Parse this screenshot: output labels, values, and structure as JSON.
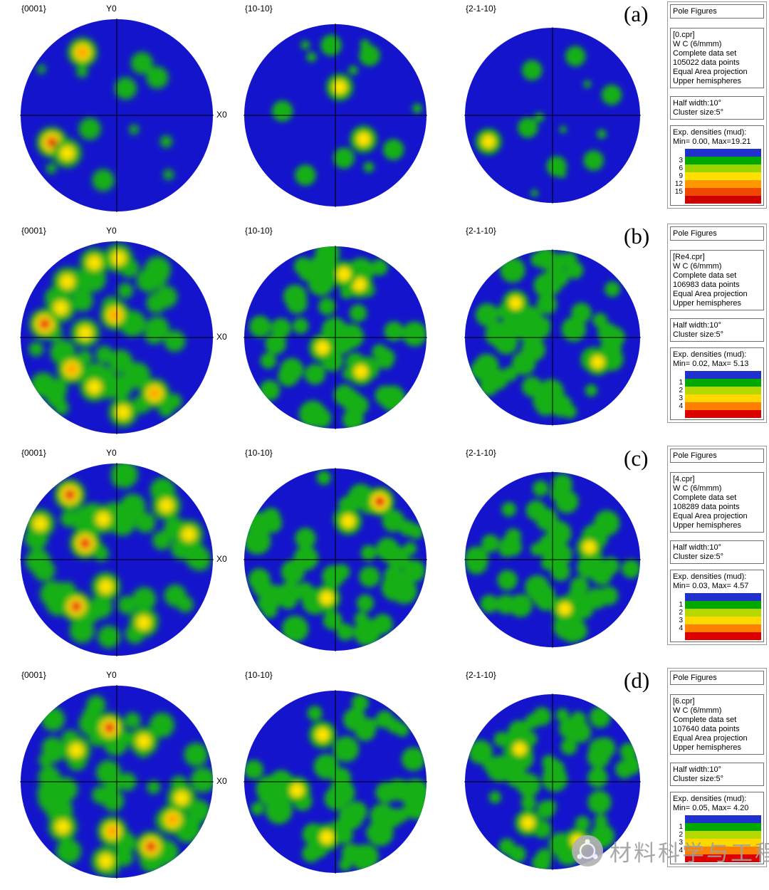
{
  "legend_header": "Pole Figures",
  "palette": {
    "base": "#1414cc",
    "green": "#12b012",
    "yellow": "#ffe400",
    "orange": "#ff9000",
    "red": "#e61010"
  },
  "watermark": {
    "text": "材料科学与工程"
  },
  "chart_data": {
    "type": "heatmap",
    "subtype": "EBSD pole figures",
    "phase": "W C (6/mmm)",
    "projection": "Equal Area projection",
    "hemisphere": "Upper hemispheres",
    "pole_figures": [
      "{0001}",
      "{10-10}",
      "{2-1-10}"
    ],
    "rows": [
      {
        "label": "(a)",
        "file": "0.cpr",
        "data_points": 105022,
        "min_mud": 0.0,
        "max_mud": 19.21,
        "scale_ticks": [
          3,
          6,
          9,
          12,
          15
        ]
      },
      {
        "label": "(b)",
        "file": "Re4.cpr",
        "data_points": 106983,
        "min_mud": 0.02,
        "max_mud": 5.13,
        "scale_ticks": [
          1,
          2,
          3,
          4
        ]
      },
      {
        "label": "(c)",
        "file": "4.cpr",
        "data_points": 108289,
        "min_mud": 0.03,
        "max_mud": 4.57,
        "scale_ticks": [
          1,
          2,
          3,
          4
        ]
      },
      {
        "label": "(d)",
        "file": "6.cpr",
        "data_points": 107640,
        "min_mud": 0.05,
        "max_mud": 4.2,
        "scale_ticks": [
          1,
          2,
          3,
          4
        ]
      }
    ]
  },
  "rows": [
    {
      "label": "(a)",
      "info": {
        "file": "[0.cpr]",
        "phase": "W C (6/mmm)",
        "dataset": "Complete data set",
        "points": "105022 data points",
        "projection": "Equal Area projection",
        "hemisphere": "Upper hemispheres"
      },
      "params": {
        "half_width": "Half width:10°",
        "cluster": "Cluster size:5°"
      },
      "densities": {
        "label": "Exp. densities (mud):",
        "min_max": "Min= 0.00, Max=19.21"
      },
      "scale": [
        {
          "label": "",
          "color": "#2030cc"
        },
        {
          "label": "3",
          "color": "#00a800"
        },
        {
          "label": "6",
          "color": "#9cd400"
        },
        {
          "label": "9",
          "color": "#ffe000"
        },
        {
          "label": "12",
          "color": "#ff9800"
        },
        {
          "label": "15",
          "color": "#f04800"
        },
        {
          "label": "",
          "color": "#cc0000"
        }
      ],
      "figures": [
        {
          "title": "{0001}",
          "axis_top": "Y0",
          "axis_right": "X0",
          "seed": 101,
          "speckle": {
            "count": 6,
            "rmin": 0.04,
            "rmax": 0.07
          },
          "hotspots": [
            [
              -0.38,
              0.7,
              "o"
            ],
            [
              0.28,
              0.58,
              "g"
            ],
            [
              0.1,
              0.3,
              "g"
            ],
            [
              0.45,
              0.42,
              "g"
            ],
            [
              -0.72,
              -0.3,
              "r"
            ],
            [
              -0.55,
              -0.42,
              "y"
            ],
            [
              -0.3,
              -0.15,
              "g"
            ],
            [
              -0.15,
              -0.72,
              "g"
            ]
          ]
        },
        {
          "title": "{10-10}",
          "seed": 102,
          "speckle": {
            "count": 6,
            "rmin": 0.04,
            "rmax": 0.06
          },
          "hotspots": [
            [
              -0.05,
              0.82,
              "g"
            ],
            [
              0.4,
              0.7,
              "g"
            ],
            [
              0.05,
              0.33,
              "y"
            ],
            [
              -0.62,
              0.05,
              "g"
            ],
            [
              0.33,
              -0.28,
              "y"
            ],
            [
              0.1,
              -0.5,
              "g"
            ],
            [
              -0.35,
              -0.7,
              "g"
            ],
            [
              0.68,
              -0.4,
              "g"
            ]
          ]
        },
        {
          "title": "{2-1-10}",
          "seed": 103,
          "speckle": {
            "count": 6,
            "rmin": 0.04,
            "rmax": 0.06
          },
          "hotspots": [
            [
              0.28,
              0.72,
              "g"
            ],
            [
              -0.25,
              0.55,
              "g"
            ],
            [
              0.72,
              0.25,
              "g"
            ],
            [
              -0.78,
              -0.32,
              "y"
            ],
            [
              0.05,
              -0.62,
              "g"
            ],
            [
              0.5,
              -0.55,
              "g"
            ],
            [
              -0.3,
              -0.15,
              "g"
            ]
          ]
        }
      ]
    },
    {
      "label": "(b)",
      "info": {
        "file": "[Re4.cpr]",
        "phase": "W C (6/mmm)",
        "dataset": "Complete data set",
        "points": "106983 data points",
        "projection": "Equal Area projection",
        "hemisphere": "Upper hemispheres"
      },
      "params": {
        "half_width": "Half width:10°",
        "cluster": "Cluster size:5°"
      },
      "densities": {
        "label": "Exp. densities (mud):",
        "min_max": "Min= 0.02, Max= 5.13"
      },
      "scale": [
        {
          "label": "",
          "color": "#2030cc"
        },
        {
          "label": "1",
          "color": "#00a800"
        },
        {
          "label": "2",
          "color": "#b4d800"
        },
        {
          "label": "3",
          "color": "#ffd800"
        },
        {
          "label": "4",
          "color": "#ff8000"
        },
        {
          "label": "",
          "color": "#dd0000"
        }
      ],
      "figures": [
        {
          "title": "{0001}",
          "axis_top": "Y0",
          "axis_right": "X0",
          "seed": 204,
          "speckle": {
            "count": 40,
            "rmin": 0.07,
            "rmax": 0.14
          },
          "hotspots": [
            [
              -0.8,
              0.15,
              "r"
            ],
            [
              -0.55,
              0.62,
              "y"
            ],
            [
              -0.25,
              0.83,
              "y"
            ],
            [
              0.02,
              0.88,
              "y"
            ],
            [
              -0.62,
              0.33,
              "y"
            ],
            [
              -0.02,
              0.25,
              "o"
            ],
            [
              -0.35,
              0.05,
              "y"
            ],
            [
              -0.5,
              -0.35,
              "o"
            ],
            [
              -0.25,
              -0.55,
              "y"
            ],
            [
              0.42,
              -0.62,
              "o"
            ],
            [
              0.07,
              -0.83,
              "y"
            ],
            [
              0.55,
              0.45,
              "g"
            ]
          ]
        },
        {
          "title": "{10-10}",
          "seed": 205,
          "speckle": {
            "count": 44,
            "rmin": 0.07,
            "rmax": 0.15
          },
          "hotspots": [
            [
              0.28,
              0.62,
              "y"
            ],
            [
              0.1,
              0.74,
              "y"
            ],
            [
              -0.45,
              0.4,
              "g"
            ],
            [
              -0.15,
              -0.12,
              "y"
            ],
            [
              0.3,
              -0.4,
              "y"
            ],
            [
              -0.55,
              -0.45,
              "g"
            ]
          ]
        },
        {
          "title": "{2-1-10}",
          "seed": 206,
          "speckle": {
            "count": 44,
            "rmin": 0.07,
            "rmax": 0.15
          },
          "hotspots": [
            [
              -0.45,
              0.42,
              "y"
            ],
            [
              0.35,
              0.3,
              "g"
            ],
            [
              0.55,
              -0.3,
              "y"
            ],
            [
              -0.25,
              -0.6,
              "g"
            ]
          ]
        }
      ]
    },
    {
      "label": "(c)",
      "info": {
        "file": "[4.cpr]",
        "phase": "W C (6/mmm)",
        "dataset": "Complete data set",
        "points": "108289 data points",
        "projection": "Equal Area projection",
        "hemisphere": "Upper hemispheres"
      },
      "params": {
        "half_width": "Half width:10°",
        "cluster": "Cluster size:5°"
      },
      "densities": {
        "label": "Exp. densities (mud):",
        "min_max": "Min= 0.03, Max= 4.57"
      },
      "scale": [
        {
          "label": "",
          "color": "#2030cc"
        },
        {
          "label": "1",
          "color": "#00a800"
        },
        {
          "label": "2",
          "color": "#b4d800"
        },
        {
          "label": "3",
          "color": "#ffd800"
        },
        {
          "label": "4",
          "color": "#ff8000"
        },
        {
          "label": "",
          "color": "#dd0000"
        }
      ],
      "figures": [
        {
          "title": "{0001}",
          "axis_top": "Y0",
          "axis_right": "X0",
          "seed": 307,
          "speckle": {
            "count": 40,
            "rmin": 0.07,
            "rmax": 0.14
          },
          "hotspots": [
            [
              -0.52,
              0.72,
              "r"
            ],
            [
              -0.85,
              0.4,
              "y"
            ],
            [
              -0.35,
              0.18,
              "r"
            ],
            [
              -0.15,
              0.45,
              "y"
            ],
            [
              0.55,
              0.6,
              "y"
            ],
            [
              0.8,
              0.28,
              "y"
            ],
            [
              -0.45,
              -0.52,
              "r"
            ],
            [
              -0.12,
              -0.3,
              "y"
            ],
            [
              0.3,
              -0.7,
              "y"
            ],
            [
              0.65,
              -0.4,
              "g"
            ]
          ]
        },
        {
          "title": "{10-10}",
          "seed": 308,
          "speckle": {
            "count": 44,
            "rmin": 0.07,
            "rmax": 0.15
          },
          "hotspots": [
            [
              0.52,
              0.68,
              "r"
            ],
            [
              0.15,
              0.45,
              "y"
            ],
            [
              -0.35,
              0.25,
              "g"
            ],
            [
              -0.1,
              -0.45,
              "y"
            ],
            [
              0.4,
              -0.2,
              "g"
            ]
          ]
        },
        {
          "title": "{2-1-10}",
          "seed": 309,
          "speckle": {
            "count": 44,
            "rmin": 0.07,
            "rmax": 0.15
          },
          "hotspots": [
            [
              -0.2,
              0.6,
              "g"
            ],
            [
              0.45,
              0.15,
              "y"
            ],
            [
              -0.55,
              -0.25,
              "g"
            ],
            [
              0.15,
              -0.6,
              "y"
            ]
          ]
        }
      ]
    },
    {
      "label": "(d)",
      "info": {
        "file": "[6.cpr]",
        "phase": "W C (6/mmm)",
        "dataset": "Complete data set",
        "points": "107640 data points",
        "projection": "Equal Area projection",
        "hemisphere": "Upper hemispheres"
      },
      "params": {
        "half_width": "Half width:10°",
        "cluster": "Cluster size:5°"
      },
      "densities": {
        "label": "Exp. densities (mud):",
        "min_max": "Min= 0.05, Max= 4.20"
      },
      "scale": [
        {
          "label": "",
          "color": "#2030cc"
        },
        {
          "label": "1",
          "color": "#00a800"
        },
        {
          "label": "2",
          "color": "#b4d800"
        },
        {
          "label": "3",
          "color": "#ffd800"
        },
        {
          "label": "4",
          "color": "#ff8000"
        },
        {
          "label": "",
          "color": "#dd0000"
        }
      ],
      "figures": [
        {
          "title": "{0001}",
          "axis_top": "Y0",
          "axis_right": "X0",
          "seed": 410,
          "speckle": {
            "count": 40,
            "rmin": 0.07,
            "rmax": 0.14
          },
          "hotspots": [
            [
              -0.08,
              0.6,
              "r"
            ],
            [
              -0.45,
              0.35,
              "y"
            ],
            [
              0.3,
              0.45,
              "y"
            ],
            [
              0.72,
              -0.18,
              "y"
            ],
            [
              0.62,
              -0.42,
              "o"
            ],
            [
              0.38,
              -0.72,
              "r"
            ],
            [
              -0.05,
              -0.55,
              "o"
            ],
            [
              -0.6,
              -0.5,
              "y"
            ],
            [
              -0.12,
              -0.88,
              "y"
            ],
            [
              -0.75,
              0.05,
              "g"
            ]
          ]
        },
        {
          "title": "{10-10}",
          "seed": 411,
          "speckle": {
            "count": 44,
            "rmin": 0.07,
            "rmax": 0.15
          },
          "hotspots": [
            [
              -0.15,
              0.55,
              "y"
            ],
            [
              0.35,
              0.6,
              "g"
            ],
            [
              -0.45,
              -0.1,
              "y"
            ],
            [
              0.25,
              -0.35,
              "g"
            ],
            [
              -0.1,
              -0.65,
              "y"
            ]
          ]
        },
        {
          "title": "{2-1-10}",
          "seed": 412,
          "speckle": {
            "count": 44,
            "rmin": 0.07,
            "rmax": 0.15
          },
          "hotspots": [
            [
              0.2,
              0.65,
              "g"
            ],
            [
              -0.4,
              0.4,
              "y"
            ],
            [
              0.55,
              0.05,
              "g"
            ],
            [
              0.3,
              -0.72,
              "y"
            ],
            [
              -0.3,
              -0.5,
              "y"
            ]
          ]
        }
      ]
    }
  ]
}
